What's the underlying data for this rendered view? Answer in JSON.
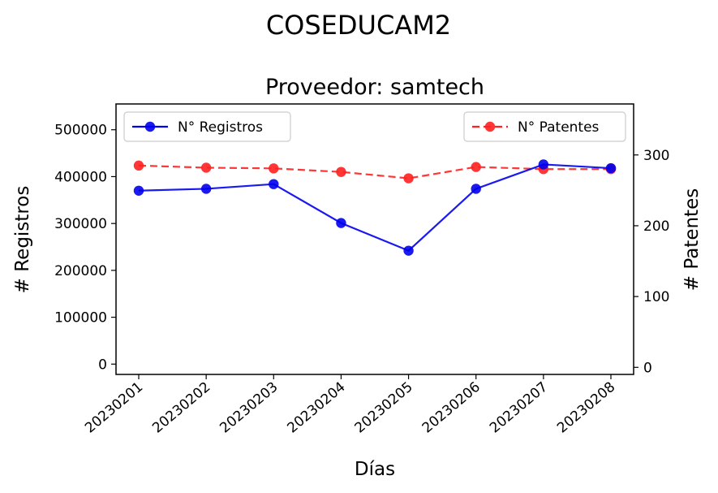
{
  "figure": {
    "suptitle": "COSEDUCAM2"
  },
  "chart_data": {
    "type": "line",
    "title": "Proveedor: samtech",
    "xlabel": "Días",
    "ylabel_left": "# Registros",
    "ylabel_right": "# Patentes",
    "categories": [
      "20230201",
      "20230202",
      "20230203",
      "20230204",
      "20230205",
      "20230206",
      "20230207",
      "20230208"
    ],
    "y_left": {
      "lim": [
        -22000,
        555000
      ],
      "ticks": [
        0,
        100000,
        200000,
        300000,
        400000,
        500000
      ]
    },
    "y_right": {
      "lim": [
        -10,
        372
      ],
      "ticks": [
        0,
        100,
        200,
        300
      ]
    },
    "grid": false,
    "series": [
      {
        "name": "N° Registros",
        "axis": "left",
        "color": "#0000ee",
        "linestyle": "solid",
        "marker": "circle",
        "values": [
          370000,
          374000,
          384000,
          301000,
          242000,
          374000,
          426000,
          418000
        ]
      },
      {
        "name": "N° Patentes",
        "axis": "right",
        "color": "#ff2020",
        "linestyle": "dashed",
        "marker": "circle",
        "values": [
          285,
          282,
          281,
          276,
          267,
          283,
          280,
          280
        ]
      }
    ],
    "legends": [
      {
        "series": "N° Registros",
        "placement": "upper-left"
      },
      {
        "series": "N° Patentes",
        "placement": "upper-right"
      }
    ]
  }
}
